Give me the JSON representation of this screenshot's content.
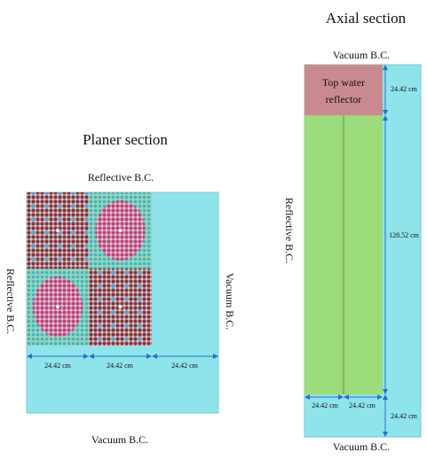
{
  "planer_section": {
    "title": "Planer section",
    "top_label": "Reflective B.C.",
    "left_label": "Reflective B.C.",
    "right_label": "Vacuum B.C.",
    "bottom_label": "Vacuum B.C.",
    "dimensions": [
      "24.42 cm",
      "24.42 cm",
      "24.42 cm"
    ]
  },
  "axial_section": {
    "title": "Axial section",
    "top_label": "Vacuum B.C.",
    "bottom_label": "Vacuum B.C.",
    "left_label": "Reflective B.C.",
    "reflector_label": [
      "Top water",
      "reflector"
    ],
    "heights": [
      "24.42 cm",
      "128.52 cm",
      "24.42 cm"
    ],
    "widths": [
      "24.42 cm",
      "24.42 cm"
    ]
  }
}
